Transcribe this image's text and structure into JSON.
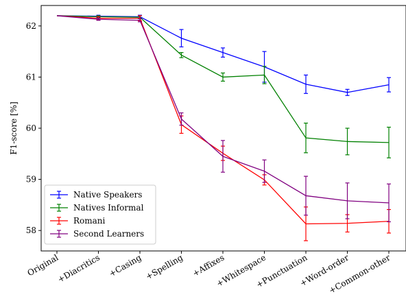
{
  "chart_data": {
    "type": "line",
    "title": "",
    "xlabel": "",
    "ylabel": "F1-score [%]",
    "ylim": [
      57.6,
      62.4
    ],
    "yticks": [
      58,
      59,
      60,
      61,
      62
    ],
    "categories": [
      "Original",
      "+Diacritics",
      "+Casing",
      "+Spelling",
      "+Affixes",
      "+Whitespace",
      "+Punctuation",
      "+Word-order",
      "+Common-other"
    ],
    "grid": false,
    "legend_position": "lower-left",
    "series": [
      {
        "name": "Native Speakers",
        "color": "#0000ff",
        "values": [
          62.2,
          62.19,
          62.18,
          61.76,
          61.48,
          61.2,
          60.86,
          60.7,
          60.85
        ],
        "errors": [
          0.0,
          0.02,
          0.03,
          0.17,
          0.09,
          0.3,
          0.18,
          0.06,
          0.14
        ]
      },
      {
        "name": "Natives Informal",
        "color": "#008000",
        "values": [
          62.2,
          62.18,
          62.17,
          61.43,
          61.0,
          61.04,
          59.81,
          59.74,
          59.72
        ],
        "errors": [
          0.0,
          0.02,
          0.03,
          0.05,
          0.08,
          0.17,
          0.29,
          0.26,
          0.3
        ]
      },
      {
        "name": "Romani",
        "color": "#ff0000",
        "values": [
          62.2,
          62.15,
          62.15,
          60.07,
          59.51,
          58.99,
          58.13,
          58.14,
          58.18
        ],
        "errors": [
          0.0,
          0.03,
          0.05,
          0.17,
          0.14,
          0.1,
          0.33,
          0.17,
          0.23
        ]
      },
      {
        "name": "Second Learners",
        "color": "#800080",
        "values": [
          62.2,
          62.13,
          62.11,
          60.18,
          59.45,
          59.16,
          58.68,
          58.58,
          58.54
        ],
        "errors": [
          0.0,
          0.02,
          0.03,
          0.12,
          0.31,
          0.22,
          0.38,
          0.35,
          0.37
        ]
      }
    ]
  }
}
